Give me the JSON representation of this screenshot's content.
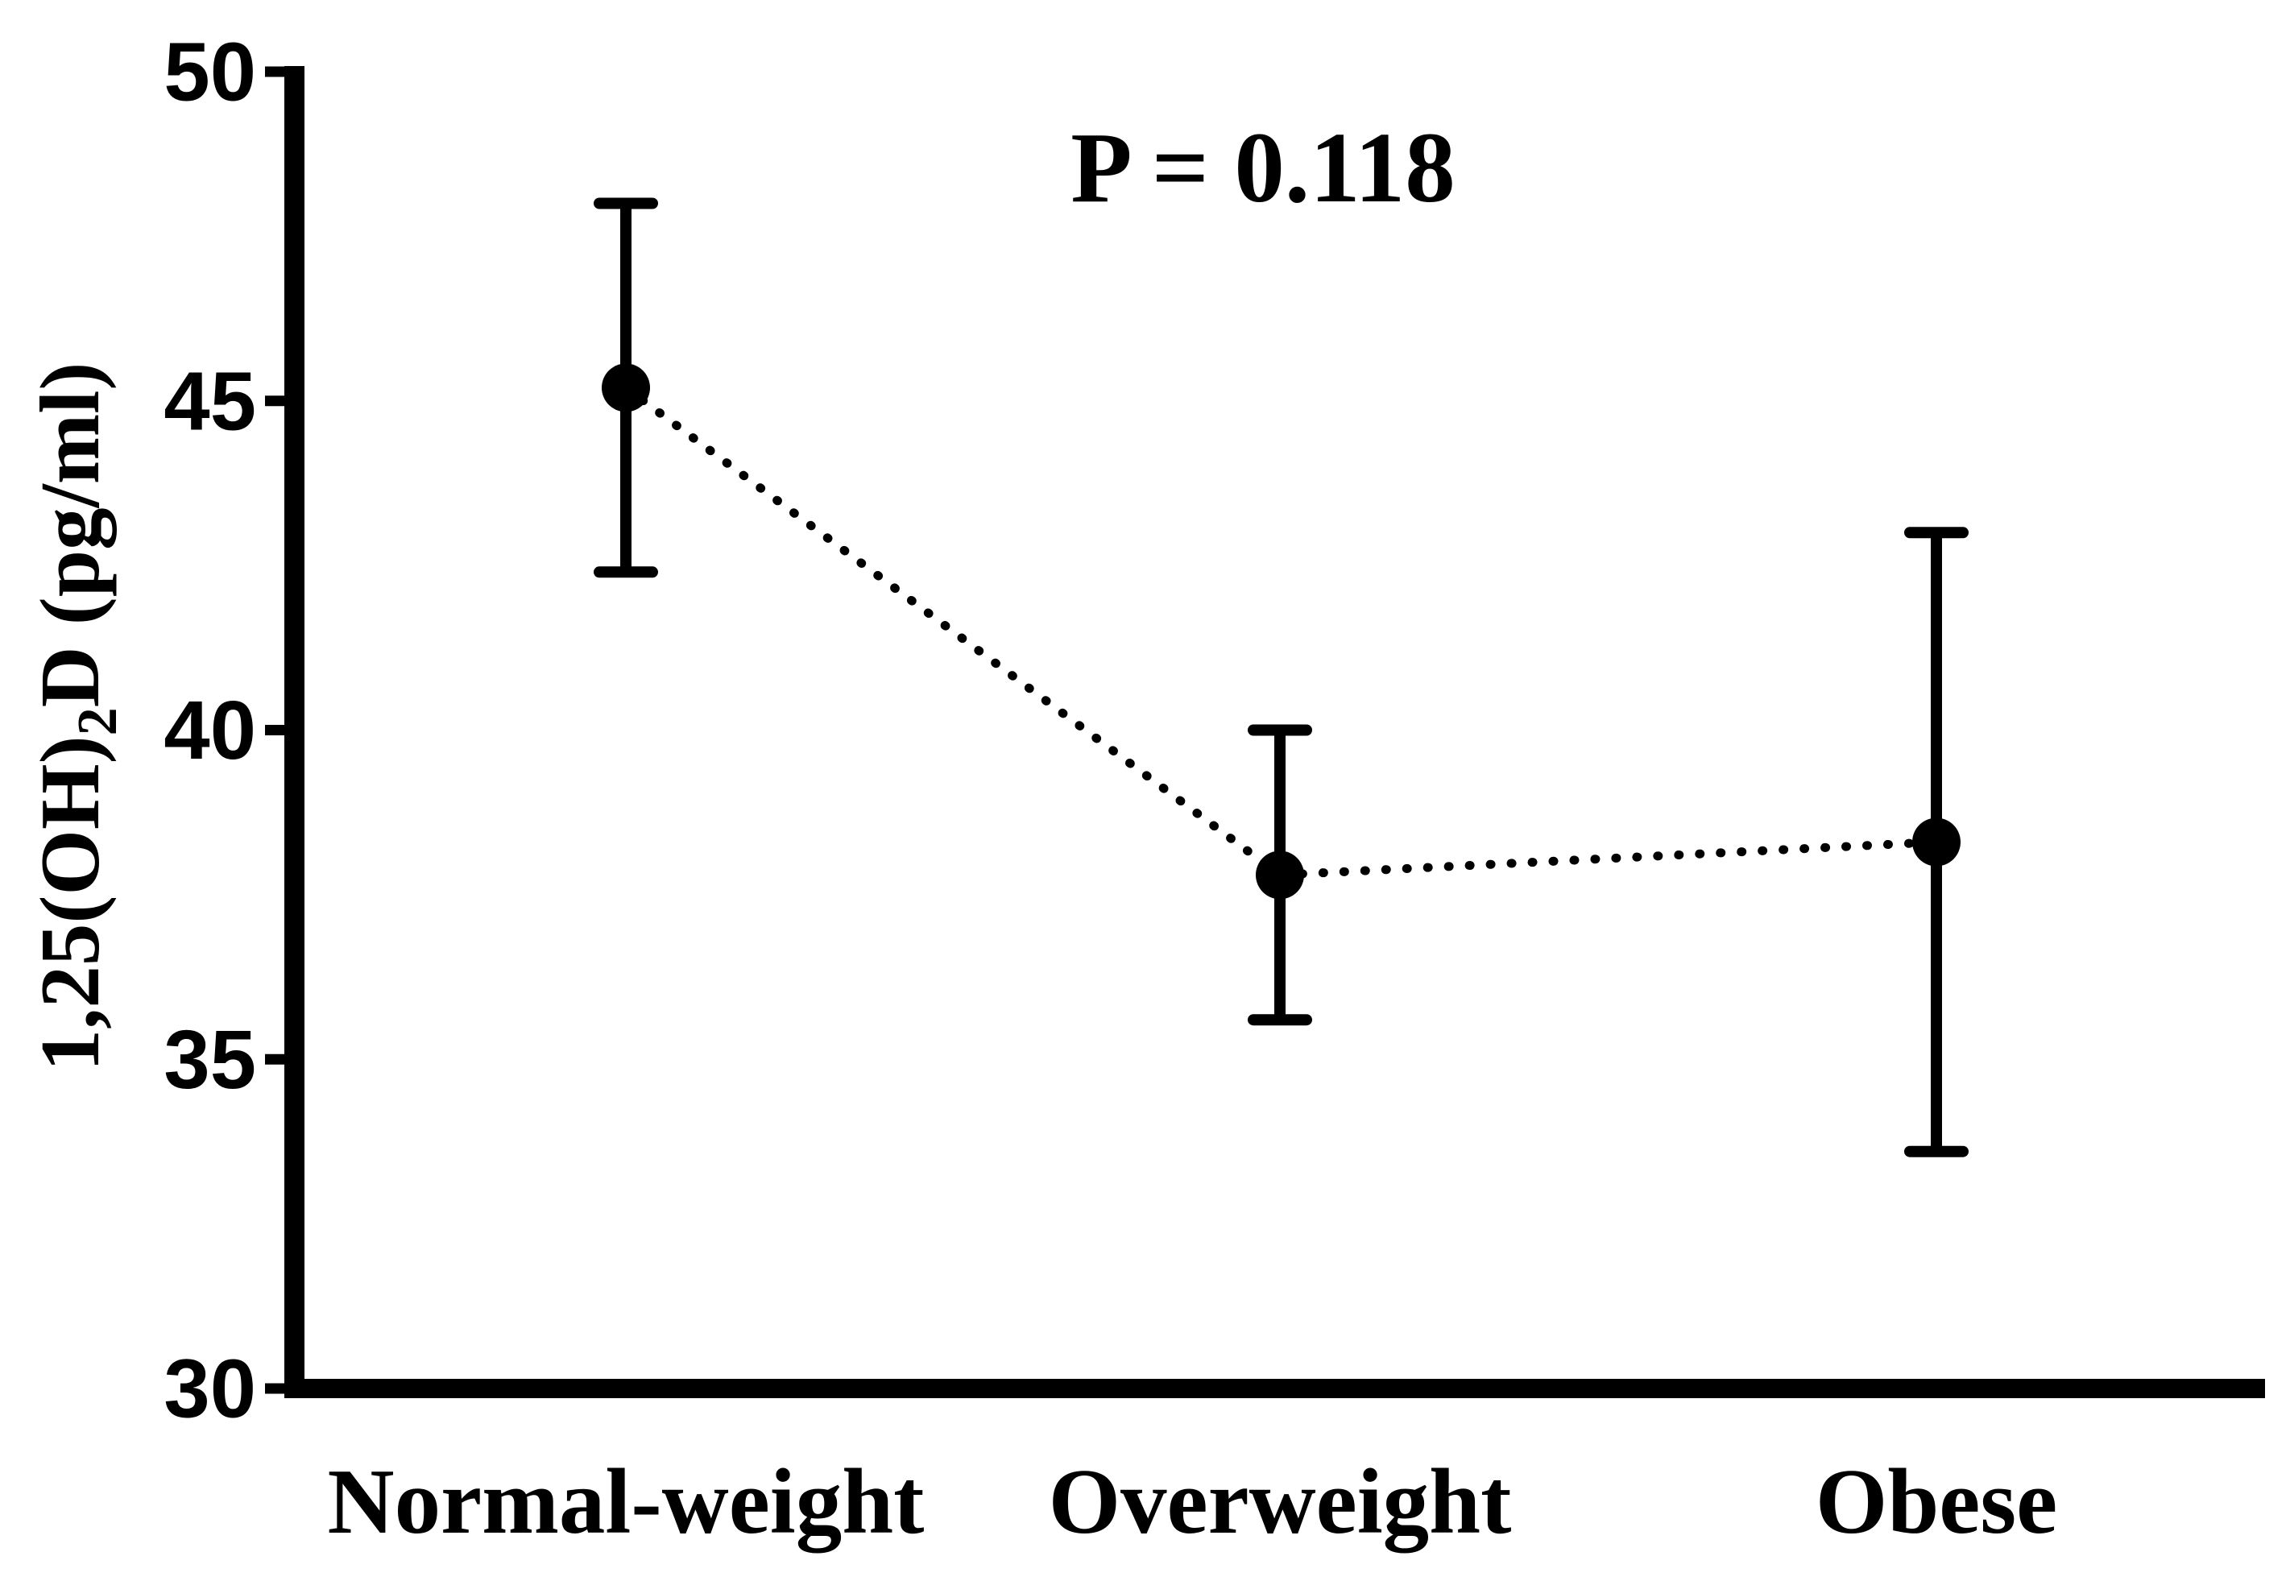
{
  "figure": {
    "background_color": "#ffffff",
    "ink_color": "#000000"
  },
  "chart_data": {
    "type": "scatter",
    "subtype": "means-with-error-bars",
    "annotation": "P = 0.118",
    "ylabel": "1,25(OH)₂D (pg/ml)",
    "xlabel": "",
    "categories": [
      "Normal-weight",
      "Overweight",
      "Obese"
    ],
    "series": [
      {
        "means": [
          45.2,
          37.8,
          38.3
        ],
        "error_low": [
          42.4,
          35.6,
          33.6
        ],
        "error_high": [
          48.0,
          40.0,
          43.0
        ]
      }
    ],
    "ylim": [
      30,
      50
    ],
    "yticks": [
      50,
      45,
      40,
      35,
      30
    ],
    "grid": false,
    "legend": "none",
    "marker": "filled-circle",
    "line_style": "dotted",
    "color": "#000000"
  }
}
